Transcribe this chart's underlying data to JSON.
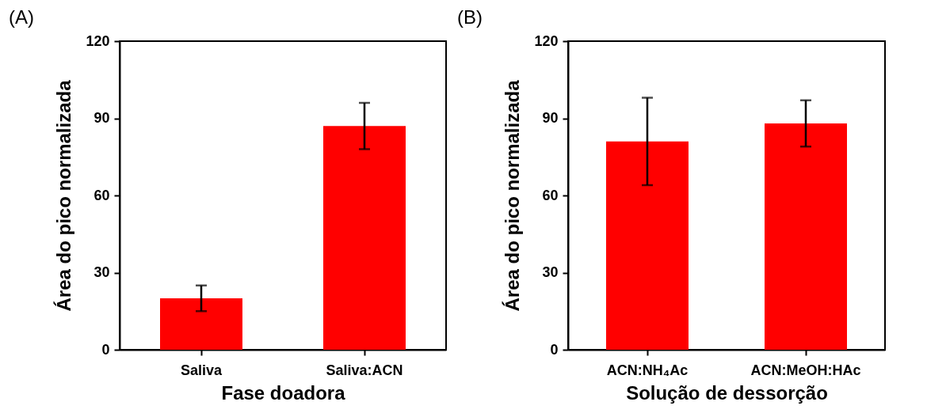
{
  "chart_data": [
    {
      "type": "bar",
      "title": "(A)",
      "xlabel": "Fase doadora",
      "ylabel": "Área do pico normalizada",
      "categories": [
        "Saliva",
        "Saliva:ACN"
      ],
      "series": [
        {
          "color": "#ff0000",
          "values": [
            20,
            87
          ],
          "errors": [
            [
              15,
              25
            ],
            [
              78,
              96
            ]
          ]
        }
      ],
      "ylim": [
        0,
        120
      ],
      "yticks": [
        0,
        30,
        60,
        90,
        120
      ],
      "grid": false
    },
    {
      "type": "bar",
      "title": "(B)",
      "xlabel": "Solução de dessorção",
      "ylabel": "Área do pico normalizada",
      "categories": [
        "ACN:NH₄Ac",
        "ACN:MeOH:HAc"
      ],
      "series": [
        {
          "color": "#ff0000",
          "values": [
            81,
            88
          ],
          "errors": [
            [
              64,
              98
            ],
            [
              79,
              97
            ]
          ]
        }
      ],
      "ylim": [
        0,
        120
      ],
      "yticks": [
        0,
        30,
        60,
        90,
        120
      ],
      "grid": false
    }
  ]
}
